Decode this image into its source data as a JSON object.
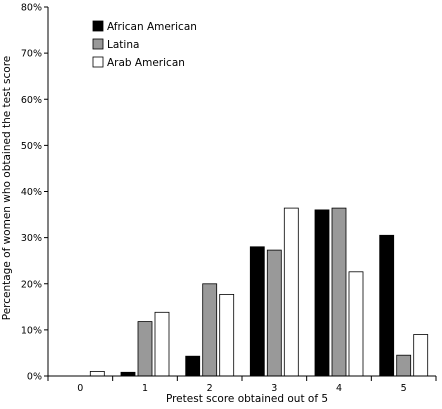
{
  "chart_data": {
    "type": "bar",
    "xlabel": "Pretest score obtained out of 5",
    "ylabel": "Percentage of women who obtained the test score",
    "categories": [
      "0",
      "1",
      "2",
      "3",
      "4",
      "5"
    ],
    "ylim": [
      0,
      80
    ],
    "yticks": [
      0,
      10,
      20,
      30,
      40,
      50,
      60,
      70,
      80
    ],
    "ytick_labels": [
      "0%",
      "10%",
      "20%",
      "30%",
      "40%",
      "50%",
      "60%",
      "70%",
      "80%"
    ],
    "grid": false,
    "legend_position": "top-left",
    "series": [
      {
        "name": "African American",
        "color": "#000000",
        "values": [
          0,
          0.8,
          4.3,
          28.0,
          36.0,
          30.5
        ]
      },
      {
        "name": "Latina",
        "color": "#999999",
        "values": [
          0,
          11.8,
          20.0,
          27.3,
          36.4,
          4.5
        ]
      },
      {
        "name": "Arab American",
        "color": "#ffffff",
        "values": [
          1.0,
          13.8,
          17.7,
          36.4,
          22.6,
          9.0
        ]
      }
    ]
  }
}
